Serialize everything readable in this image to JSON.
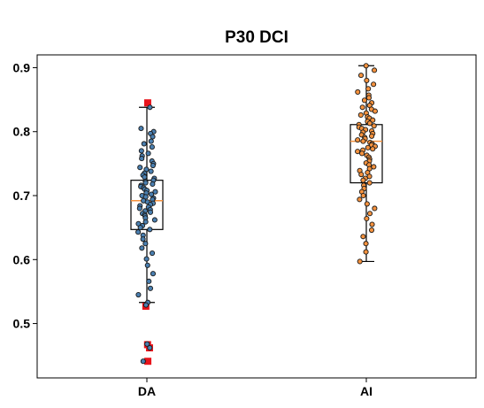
{
  "chart_data": {
    "type": "box",
    "title": "P30 DCI",
    "xlabel": "",
    "ylabel": "",
    "ylim": [
      0.415,
      0.92
    ],
    "yticks": [
      "0.5",
      "0.6",
      "0.7",
      "0.8",
      "0.9"
    ],
    "ytick_values": [
      0.5,
      0.6,
      0.7,
      0.8,
      0.9
    ],
    "categories": [
      "DA",
      "AI"
    ],
    "series": [
      {
        "category": "DA",
        "point_color": "#4a7fb0",
        "stats": {
          "whisker_low": 0.533,
          "q1": 0.647,
          "median": 0.692,
          "q3": 0.724,
          "whisker_high": 0.838
        },
        "outliers": [
          0.845,
          0.527,
          0.467,
          0.462,
          0.441
        ],
        "outlier_color": "#e8141c",
        "points": [
          0.838,
          0.805,
          0.8,
          0.797,
          0.792,
          0.785,
          0.781,
          0.776,
          0.77,
          0.766,
          0.762,
          0.758,
          0.754,
          0.75,
          0.747,
          0.744,
          0.741,
          0.738,
          0.735,
          0.732,
          0.729,
          0.727,
          0.724,
          0.722,
          0.72,
          0.718,
          0.716,
          0.714,
          0.712,
          0.71,
          0.708,
          0.706,
          0.704,
          0.702,
          0.7,
          0.698,
          0.696,
          0.694,
          0.692,
          0.69,
          0.688,
          0.686,
          0.684,
          0.682,
          0.68,
          0.678,
          0.676,
          0.674,
          0.672,
          0.67,
          0.668,
          0.665,
          0.662,
          0.659,
          0.656,
          0.653,
          0.65,
          0.647,
          0.643,
          0.638,
          0.632,
          0.625,
          0.618,
          0.61,
          0.601,
          0.591,
          0.578,
          0.566,
          0.555,
          0.545,
          0.533,
          0.529,
          0.468,
          0.462,
          0.441
        ]
      },
      {
        "category": "AI",
        "point_color": "#f5923e",
        "stats": {
          "whisker_low": 0.597,
          "q1": 0.72,
          "median": 0.785,
          "q3": 0.811,
          "whisker_high": 0.903
        },
        "outliers": [],
        "outlier_color": "#e8141c",
        "points": [
          0.903,
          0.896,
          0.888,
          0.88,
          0.874,
          0.867,
          0.862,
          0.857,
          0.853,
          0.849,
          0.845,
          0.841,
          0.838,
          0.835,
          0.832,
          0.829,
          0.826,
          0.823,
          0.821,
          0.818,
          0.816,
          0.813,
          0.811,
          0.809,
          0.807,
          0.805,
          0.803,
          0.801,
          0.799,
          0.797,
          0.795,
          0.793,
          0.791,
          0.789,
          0.787,
          0.785,
          0.783,
          0.781,
          0.779,
          0.777,
          0.775,
          0.773,
          0.771,
          0.769,
          0.766,
          0.763,
          0.76,
          0.757,
          0.754,
          0.751,
          0.748,
          0.745,
          0.742,
          0.739,
          0.736,
          0.733,
          0.73,
          0.727,
          0.724,
          0.72,
          0.716,
          0.711,
          0.706,
          0.7,
          0.694,
          0.687,
          0.68,
          0.672,
          0.664,
          0.655,
          0.646,
          0.636,
          0.625,
          0.612,
          0.597
        ]
      }
    ],
    "box_color": "#000000",
    "median_color": "#f5923e",
    "grid": false,
    "legend": "none"
  }
}
